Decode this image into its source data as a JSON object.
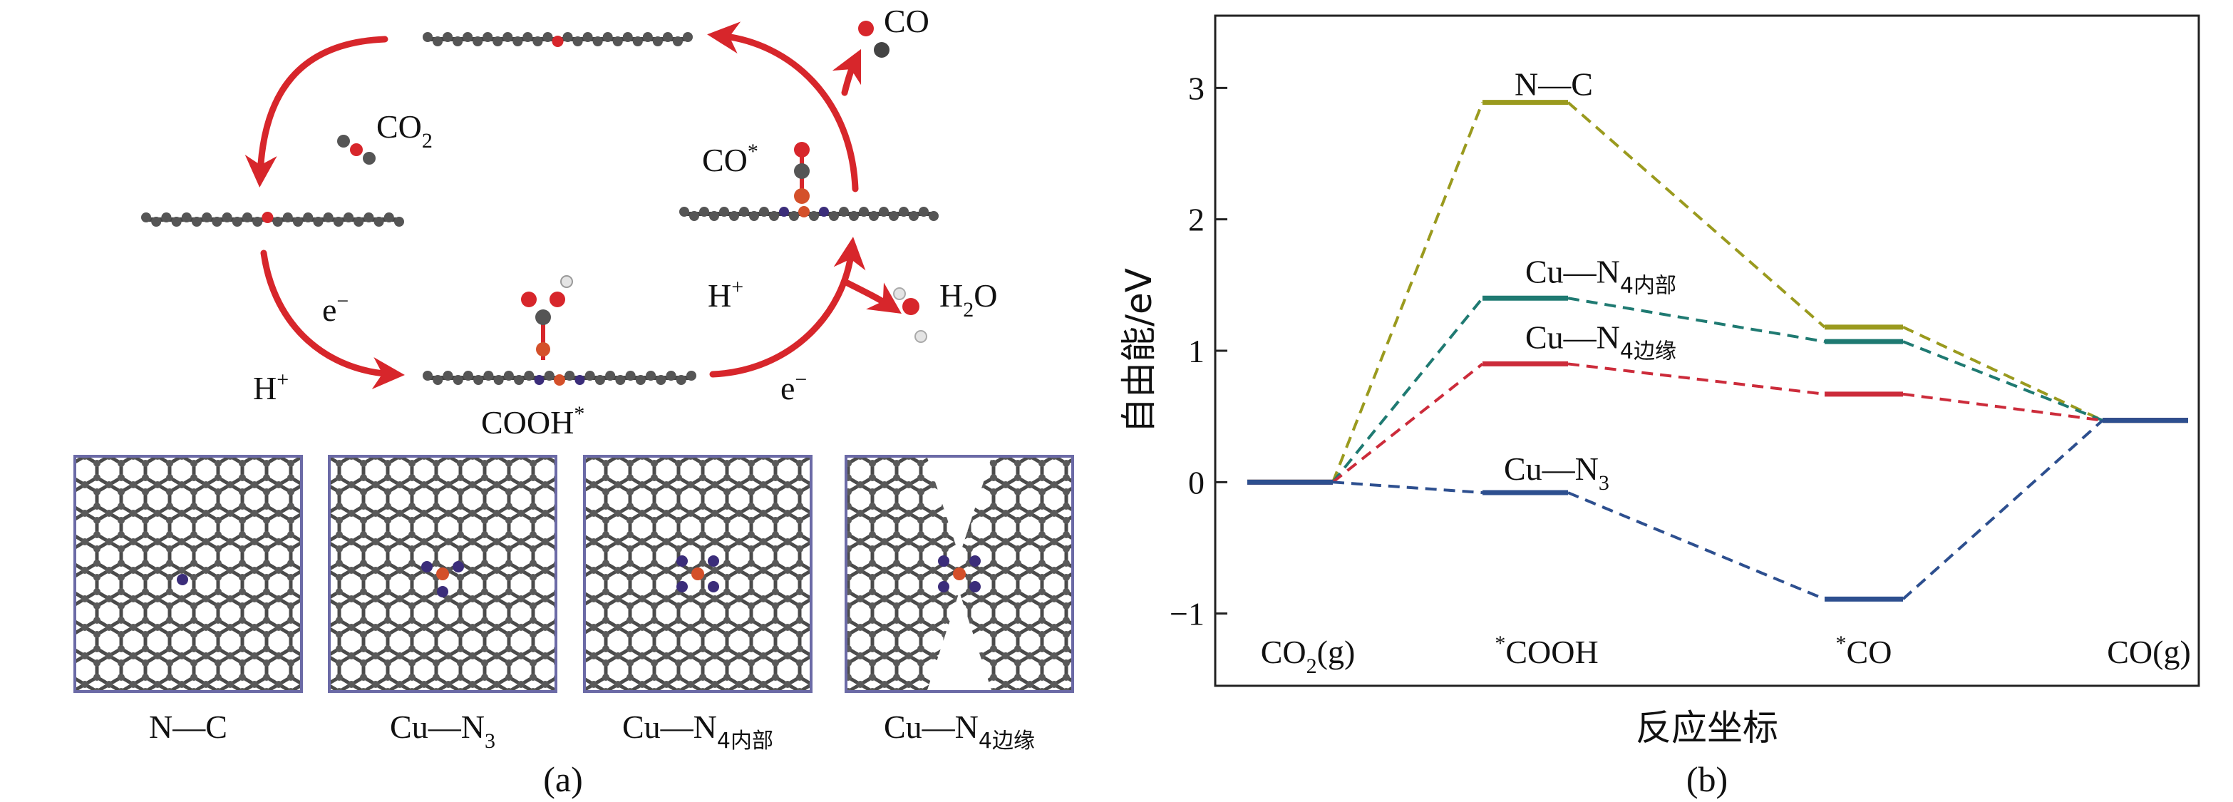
{
  "panel_a": {
    "caption": "(a)",
    "mechanism": {
      "co2_label": "CO",
      "co2_sub": "2",
      "e_minus_1": "e",
      "e_minus_1_sup": "−",
      "h_plus_1": "H",
      "h_plus_1_sup": "+",
      "cooh_label": "COOH",
      "cooh_sup": "*",
      "h_plus_2": "H",
      "h_plus_2_sup": "+",
      "e_minus_2": "e",
      "e_minus_2_sup": "−",
      "h2o_label_h": "H",
      "h2o_sub": "2",
      "h2o_label_o": "O",
      "co_star_label": "CO",
      "co_star_sup": "*",
      "co_label": "CO",
      "arrow_color": "#d7262b"
    },
    "structures": [
      {
        "name": "N—C",
        "sub": ""
      },
      {
        "name": "Cu—N",
        "sub": "3"
      },
      {
        "name": "Cu—N",
        "sub": "4内部"
      },
      {
        "name": "Cu—N",
        "sub": "4边缘"
      }
    ],
    "atom_colors": {
      "carbon": "#555555",
      "nitrogen": "#3b2d7a",
      "copper": "#d4502a",
      "oxygen": "#d7262b",
      "hydrogen": "#e8e8e8"
    }
  },
  "panel_b": {
    "caption": "(b)"
  },
  "chart_data": {
    "type": "line",
    "title": "",
    "ylabel": "自由能/eV",
    "xlabel": "反应坐标",
    "ylim": [
      -1.55,
      3.55
    ],
    "yticks": [
      -1,
      0,
      1,
      2,
      3
    ],
    "ytick_labels": [
      "−1",
      "0",
      "1",
      "2",
      "3"
    ],
    "categories": [
      {
        "pre": "",
        "main": "CO",
        "sub": "2",
        "post": "(g)"
      },
      {
        "pre": "*",
        "main": "COOH",
        "sub": "",
        "post": ""
      },
      {
        "pre": "*",
        "main": "CO",
        "sub": "",
        "post": ""
      },
      {
        "pre": "",
        "main": "CO(g)",
        "sub": "",
        "post": ""
      }
    ],
    "series": [
      {
        "name": "N—C",
        "name_sub": "",
        "color": "#9a9a1e",
        "values": [
          0,
          2.89,
          1.18,
          0.47
        ]
      },
      {
        "name": "Cu—N",
        "name_sub": "4内部",
        "color": "#1f7a72",
        "values": [
          0,
          1.4,
          1.07,
          0.47
        ]
      },
      {
        "name": "Cu—N",
        "name_sub": "4边缘",
        "color": "#cc2b3a",
        "values": [
          0,
          0.9,
          0.67,
          0.47
        ]
      },
      {
        "name": "Cu—N",
        "name_sub": "3",
        "color": "#2d4f8f",
        "values": [
          0,
          -0.08,
          -0.89,
          0.47
        ]
      }
    ],
    "grid": false,
    "legend": "inline labels"
  }
}
